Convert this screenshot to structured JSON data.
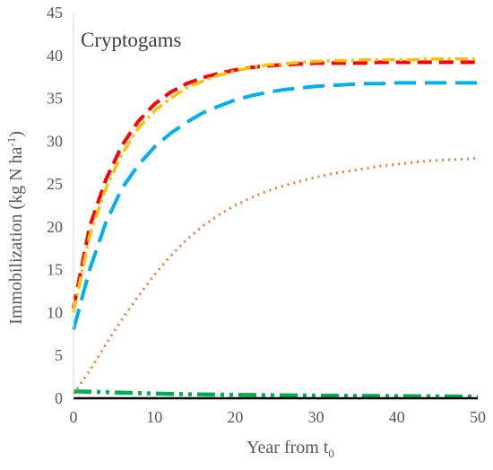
{
  "chart_data": {
    "type": "line",
    "panel_label": "Cryptogams",
    "xlabel_main": "Year from t",
    "xlabel_sub": "0",
    "ylabel_main": "Immobilization (kg N ha",
    "ylabel_sup": "-1",
    "ylabel_close": ")",
    "xlim": [
      0,
      50
    ],
    "ylim": [
      0,
      45
    ],
    "x_ticks": [
      0,
      10,
      20,
      30,
      40,
      50
    ],
    "y_ticks": [
      0,
      5,
      10,
      15,
      20,
      25,
      30,
      35,
      40,
      45
    ],
    "x": [
      0,
      2,
      4,
      6,
      8,
      10,
      12,
      14,
      16,
      18,
      20,
      22,
      24,
      26,
      28,
      30,
      32,
      34,
      36,
      38,
      40,
      42,
      44,
      46,
      48,
      50
    ],
    "series": [
      {
        "color": "#ff0000",
        "dash": "16 8",
        "width": 4,
        "values": [
          10.5,
          20.0,
          25.5,
          29.5,
          32.3,
          34.3,
          35.7,
          36.7,
          37.4,
          37.9,
          38.3,
          38.6,
          38.8,
          38.9,
          39.0,
          39.1,
          39.1,
          39.1,
          39.1,
          39.2,
          39.2,
          39.2,
          39.2,
          39.2,
          39.2,
          39.2
        ]
      },
      {
        "color": "#ffc000",
        "dash": "14 5 3 5",
        "width": 3.5,
        "values": [
          10.0,
          19.0,
          24.5,
          28.5,
          31.5,
          33.5,
          35.0,
          36.2,
          37.0,
          37.7,
          38.2,
          38.6,
          38.9,
          39.0,
          39.2,
          39.3,
          39.4,
          39.4,
          39.5,
          39.5,
          39.5,
          39.5,
          39.6,
          39.6,
          39.6,
          39.6
        ]
      },
      {
        "color": "#00b0f0",
        "dash": "24 10",
        "width": 4,
        "values": [
          8.0,
          15.0,
          20.5,
          24.5,
          27.2,
          29.3,
          30.9,
          32.2,
          33.3,
          34.1,
          34.8,
          35.3,
          35.7,
          36.0,
          36.2,
          36.4,
          36.5,
          36.6,
          36.7,
          36.7,
          36.8,
          36.8,
          36.8,
          36.8,
          36.8,
          36.8
        ]
      },
      {
        "color": "#ed7d31",
        "dash": "2 5",
        "width": 3,
        "values": [
          0.5,
          3.2,
          6.3,
          9.2,
          11.9,
          14.4,
          16.6,
          18.5,
          20.1,
          21.4,
          22.5,
          23.4,
          24.2,
          24.8,
          25.3,
          25.8,
          26.2,
          26.5,
          26.8,
          27.1,
          27.3,
          27.5,
          27.7,
          27.8,
          27.9,
          28.0
        ]
      },
      {
        "color": "#00b050",
        "dash": "20 6 4 6 4 6",
        "width": 4.5,
        "values": [
          0.8,
          0.75,
          0.7,
          0.65,
          0.6,
          0.55,
          0.5,
          0.47,
          0.45,
          0.42,
          0.4,
          0.38,
          0.36,
          0.34,
          0.32,
          0.3,
          0.29,
          0.28,
          0.27,
          0.26,
          0.25,
          0.24,
          0.23,
          0.22,
          0.21,
          0.2
        ]
      },
      {
        "color": "#000000",
        "dash": "",
        "width": 2.5,
        "values": [
          0.0,
          0.0,
          0.0,
          0.0,
          0.0,
          0.0,
          0.0,
          0.0,
          0.0,
          0.0,
          0.0,
          0.0,
          0.0,
          0.0,
          0.0,
          0.0,
          0.0,
          0.0,
          0.0,
          0.0,
          0.0,
          0.0,
          0.0,
          0.0,
          0.0,
          0.0
        ]
      }
    ]
  }
}
